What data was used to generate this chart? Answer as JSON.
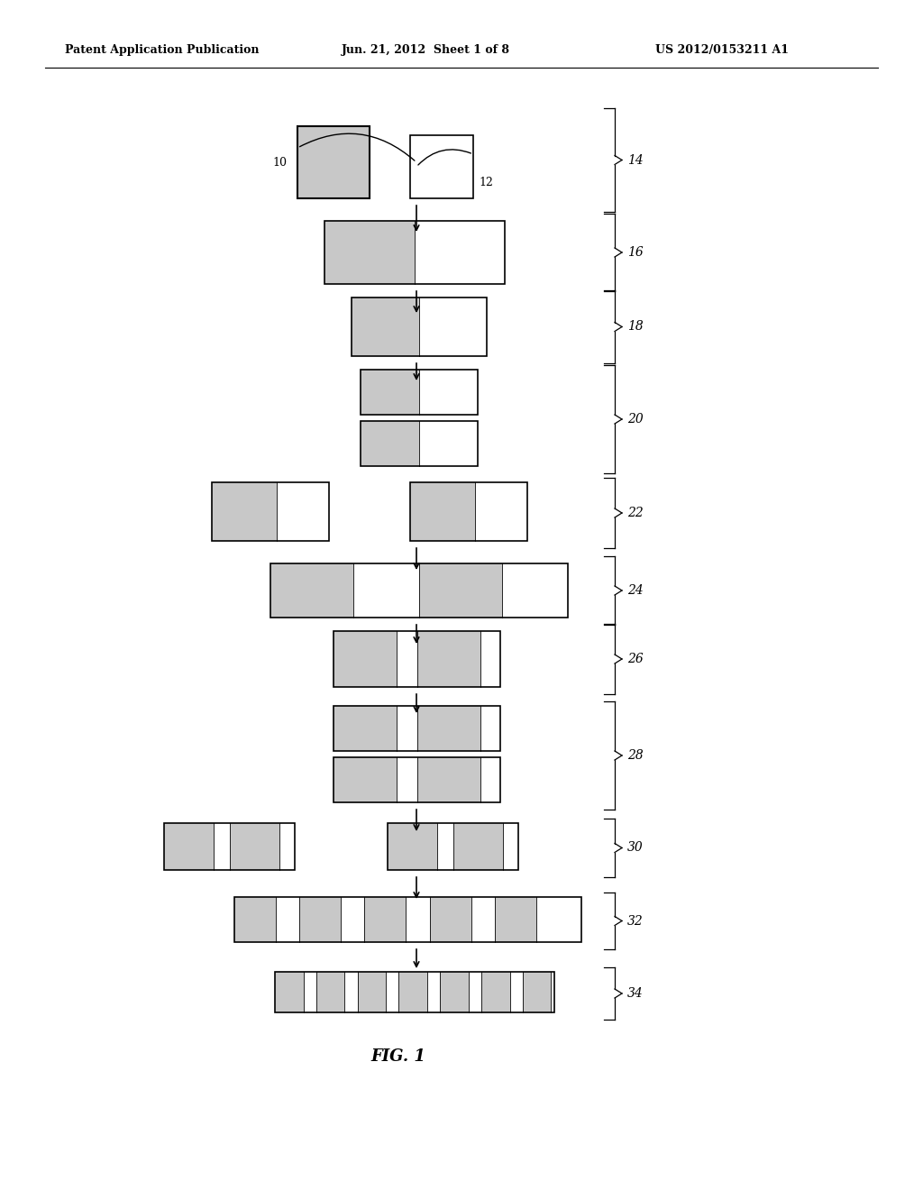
{
  "background": "#ffffff",
  "header_left": "Patent Application Publication",
  "header_mid": "Jun. 21, 2012  Sheet 1 of 8",
  "header_right": "US 2012/0153211 A1",
  "fig_caption": "FIG. 1",
  "hatch_fc": "#c8c8c8",
  "white_fc": "#ffffff",
  "header_fontsize": 9,
  "fig_label_fontsize": 13,
  "label_fontsize": 9,
  "brace_fontsize": 10
}
